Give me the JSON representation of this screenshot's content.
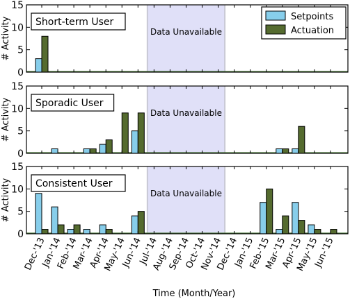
{
  "chart_data": {
    "type": "bar",
    "xlabel": "Time (Month/Year)",
    "ylabel": "# Activity",
    "ylim": [
      0,
      15
    ],
    "yticks": [
      0,
      5,
      10,
      15
    ],
    "categories": [
      "Dec-'13",
      "Jan-'14",
      "Feb-'14",
      "Mar-'14",
      "Apr-'14",
      "May-'14",
      "Jun-'14",
      "Jul-'14",
      "Aug-'14",
      "Sep-'14",
      "Oct-'14",
      "Nov-'14",
      "Dec-'14",
      "Jan-'15",
      "Feb-'15",
      "Mar-'15",
      "Apr-'15",
      "May-'15",
      "Jun-'15"
    ],
    "colors": {
      "setpoints": "#87ceeb",
      "actuation": "#556b2f",
      "unavailable": "#e0e0f8",
      "unavailable_edge": "#c8c8d4"
    },
    "legend": {
      "placement": "top-right",
      "entries": [
        {
          "name": "Setpoints",
          "color": "#87ceeb"
        },
        {
          "name": "Actuation",
          "color": "#556b2f"
        }
      ]
    },
    "unavailable": {
      "label": "Data Unavailable",
      "from_category": "Jul-'14",
      "to_category": "Nov-'14"
    },
    "panels": [
      {
        "label": "Short-term User",
        "series": [
          {
            "name": "Setpoints",
            "values": [
              3,
              0,
              0,
              0,
              0,
              0,
              0,
              0,
              0,
              0,
              0,
              0,
              0,
              0,
              0,
              0,
              0,
              0,
              0
            ]
          },
          {
            "name": "Actuation",
            "values": [
              8,
              0,
              0,
              0,
              0,
              0,
              0,
              0,
              0,
              0,
              0,
              0,
              0,
              0,
              0,
              0,
              0,
              0,
              0
            ]
          }
        ]
      },
      {
        "label": "Sporadic User",
        "series": [
          {
            "name": "Setpoints",
            "values": [
              0,
              1,
              0,
              1,
              2,
              0,
              5,
              0,
              0,
              0,
              0,
              0,
              0,
              0,
              0,
              1,
              1,
              0,
              0
            ]
          },
          {
            "name": "Actuation",
            "values": [
              0,
              0,
              0,
              1,
              3,
              9,
              9,
              0,
              0,
              0,
              0,
              0,
              0,
              0,
              0,
              1,
              6,
              0,
              0
            ]
          }
        ]
      },
      {
        "label": "Consistent User",
        "series": [
          {
            "name": "Setpoints",
            "values": [
              9,
              6,
              1,
              1,
              2,
              0,
              4,
              0,
              0,
              0,
              0,
              0,
              0,
              0,
              7,
              1,
              7,
              2,
              0
            ]
          },
          {
            "name": "Actuation",
            "values": [
              1,
              2,
              2,
              0,
              1,
              0,
              5,
              0,
              0,
              0,
              0,
              0,
              0,
              0,
              10,
              4,
              3,
              1,
              1
            ]
          }
        ]
      }
    ]
  }
}
